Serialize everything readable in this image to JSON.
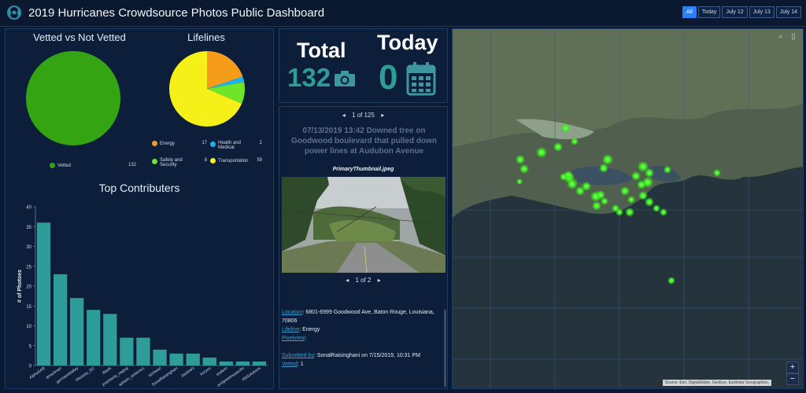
{
  "header": {
    "title": "2019 Hurricanes Crowdsource Photos Public Dashboard",
    "filters": [
      "All",
      "Today",
      "July 12",
      "July 13",
      "July 14"
    ],
    "active_filter": "All"
  },
  "vetted": {
    "title": "Vetted vs Not Vetted",
    "legend": [
      {
        "label": "Vetted",
        "value": "132",
        "color": "#35a412"
      }
    ]
  },
  "lifelines": {
    "title": "Lifelines",
    "legend": [
      {
        "label": "Energy",
        "value": "17",
        "color": "#f59d1b"
      },
      {
        "label": "Health and Medical",
        "value": "2",
        "color": "#1ab3ef"
      },
      {
        "label": "Safety and Security",
        "value": "8",
        "color": "#6ee528"
      },
      {
        "label": "Transportation",
        "value": "59",
        "color": "#f4f018"
      }
    ]
  },
  "contributors": {
    "title": "Top Contributers",
    "ylabel": "# of Photoes"
  },
  "chart_data": {
    "type": "bar",
    "title": "Top Contributers",
    "xlabel": "",
    "ylabel": "# of Photoes",
    "ylim": [
      0,
      40
    ],
    "yticks": [
      0,
      5,
      10,
      15,
      20,
      25,
      30,
      35,
      40
    ],
    "categories": [
      "AlphaSAR",
      "dmselman",
      "germanebailey",
      "hburpey_GC",
      "Blank",
      "jmdoherty_nagog",
      "ashwin_sirdeme1",
      "tschwan",
      "SonalRaisinghani",
      "Jasdow3",
      "kszyno",
      "esdiem",
      "emilyinelmusacillo",
      "AltiSolutions"
    ],
    "values": [
      36,
      23,
      17,
      14,
      13,
      7,
      7,
      4,
      3,
      3,
      2,
      1,
      1,
      1
    ],
    "color": "#2e9c98"
  },
  "totals": {
    "total_label": "Total",
    "total_value": "132",
    "today_label": "Today",
    "today_value": "0"
  },
  "gallery": {
    "counter": "1 of 125",
    "caption": "07/13/2019 13:42 Downed tree on Goodwood boulevard that pulled down power lines at Audubon Avenue",
    "image_name": "PrimaryThumbnail.jpeg",
    "image_counter": "1 of 2",
    "location_label": "Location",
    "location_value": ": 6801-6999 Goodwood Ave, Baton Rouge, Louisiana, 70806",
    "lifeline_label": "Lifeline",
    "lifeline_value": ": Energy",
    "pixelview_label": "Pixelview",
    "pixelview_value": ":",
    "submitted_label": "Submitted by",
    "submitted_value": ": SonalRaisinghani on  7/15/2019, 10:31 PM",
    "vetted_label": "Vetted",
    "vetted_value": ": 1"
  },
  "map": {
    "attribution": "Source: Esri, DigitalGlobe, GeoEye, Earthstar Geographics,",
    "zoom_in": "+",
    "zoom_out": "−"
  },
  "colors": {
    "background": "#0b1a33",
    "panel": "#0c1e3a",
    "accent_teal": "#2e9c98",
    "link": "#3c9ccf",
    "filter_active": "#2d7ff9"
  }
}
